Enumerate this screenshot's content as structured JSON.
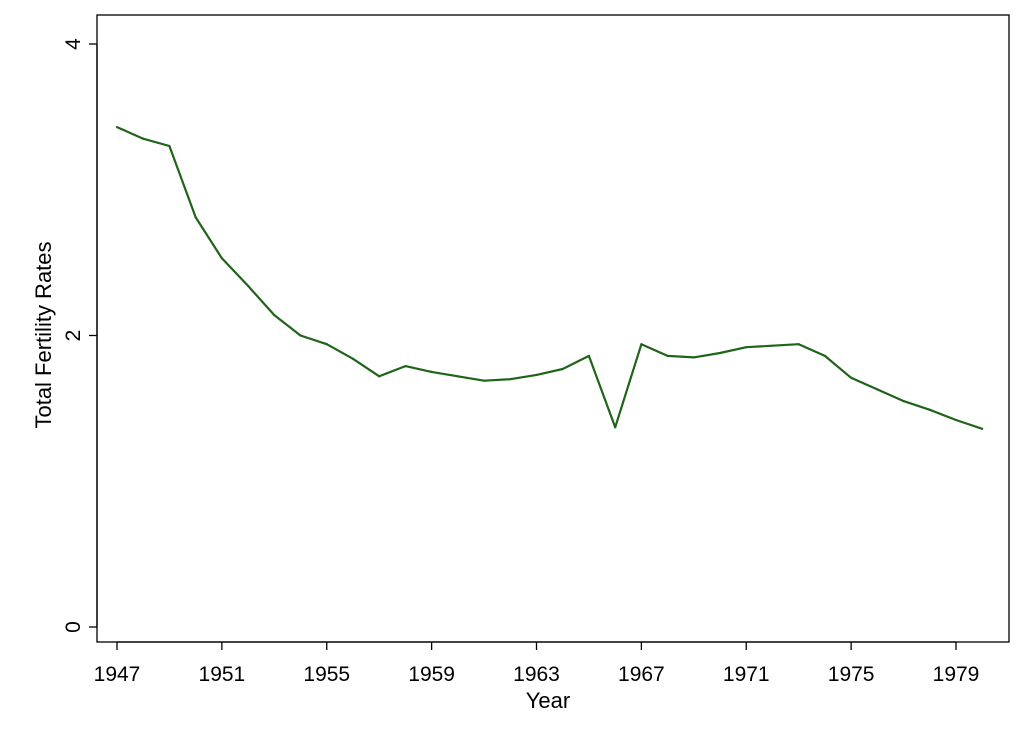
{
  "chart_data": {
    "type": "line",
    "xlabel": "Year",
    "ylabel": "Total Fertility Rates",
    "xlim": [
      1947,
      1980
    ],
    "ylim": [
      0,
      4
    ],
    "xticks": [
      1947,
      1951,
      1955,
      1959,
      1963,
      1967,
      1971,
      1975,
      1979
    ],
    "yticks": [
      0,
      2,
      4
    ],
    "grid": false,
    "legend": "none",
    "line_color": "#1f6419",
    "series": [
      {
        "x": [
          1947,
          1948,
          1949,
          1950,
          1951,
          1952,
          1953,
          1954,
          1955,
          1956,
          1957,
          1958,
          1959,
          1960,
          1961,
          1962,
          1963,
          1964,
          1965,
          1966,
          1967,
          1968,
          1969,
          1970,
          1971,
          1972,
          1973,
          1974,
          1975,
          1976,
          1977,
          1978,
          1979,
          1980
        ],
        "values": [
          3.43,
          3.35,
          3.3,
          2.81,
          2.53,
          2.34,
          2.14,
          2.0,
          1.94,
          1.84,
          1.72,
          1.79,
          1.75,
          1.72,
          1.69,
          1.7,
          1.73,
          1.77,
          1.86,
          1.37,
          1.94,
          1.86,
          1.85,
          1.88,
          1.92,
          1.93,
          1.94,
          1.86,
          1.71,
          1.63,
          1.55,
          1.49,
          1.42,
          1.36
        ]
      }
    ]
  }
}
